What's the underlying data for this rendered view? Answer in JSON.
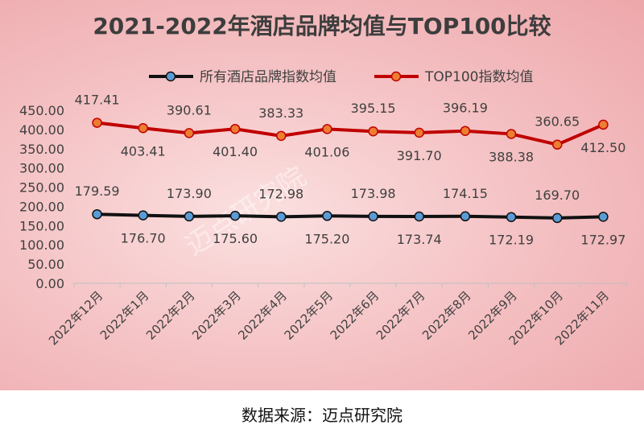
{
  "chart_data": {
    "type": "line",
    "title": "2021-2022年酒店品牌均值与TOP100比较",
    "categories": [
      "2022年12月",
      "2022年1月",
      "2022年2月",
      "2022年3月",
      "2022年4月",
      "2022年5月",
      "2022年6月",
      "2022年7月",
      "2022年8月",
      "2022年9月",
      "2022年10月",
      "2022年11月"
    ],
    "ylim": [
      0,
      450
    ],
    "yticks": [
      "0.00",
      "50.00",
      "100.00",
      "150.00",
      "200.00",
      "250.00",
      "300.00",
      "350.00",
      "400.00",
      "450.00"
    ],
    "grid": false,
    "legend_position": "top-center",
    "series": [
      {
        "name": "所有酒店品牌指数均值",
        "line_color": "#111111",
        "marker_color": "#5b9bd5",
        "values": [
          179.59,
          176.7,
          173.9,
          175.6,
          172.98,
          175.2,
          173.98,
          173.74,
          174.15,
          172.19,
          169.7,
          172.97
        ],
        "labels": [
          "179.59",
          "176.70",
          "173.90",
          "175.60",
          "172.98",
          "175.20",
          "173.98",
          "173.74",
          "174.15",
          "172.19",
          "169.70",
          "172.97"
        ]
      },
      {
        "name": "TOP100指数均值",
        "line_color": "#c00000",
        "marker_color": "#ed7d31",
        "values": [
          417.41,
          403.41,
          390.61,
          401.4,
          383.33,
          401.06,
          395.15,
          391.7,
          396.19,
          388.38,
          360.65,
          412.5
        ],
        "labels": [
          "417.41",
          "403.41",
          "390.61",
          "401.40",
          "383.33",
          "401.06",
          "395.15",
          "391.70",
          "396.19",
          "388.38",
          "360.65",
          "412.50"
        ]
      }
    ]
  },
  "watermark": "迈点研究院",
  "source": "数据来源：迈点研究院"
}
